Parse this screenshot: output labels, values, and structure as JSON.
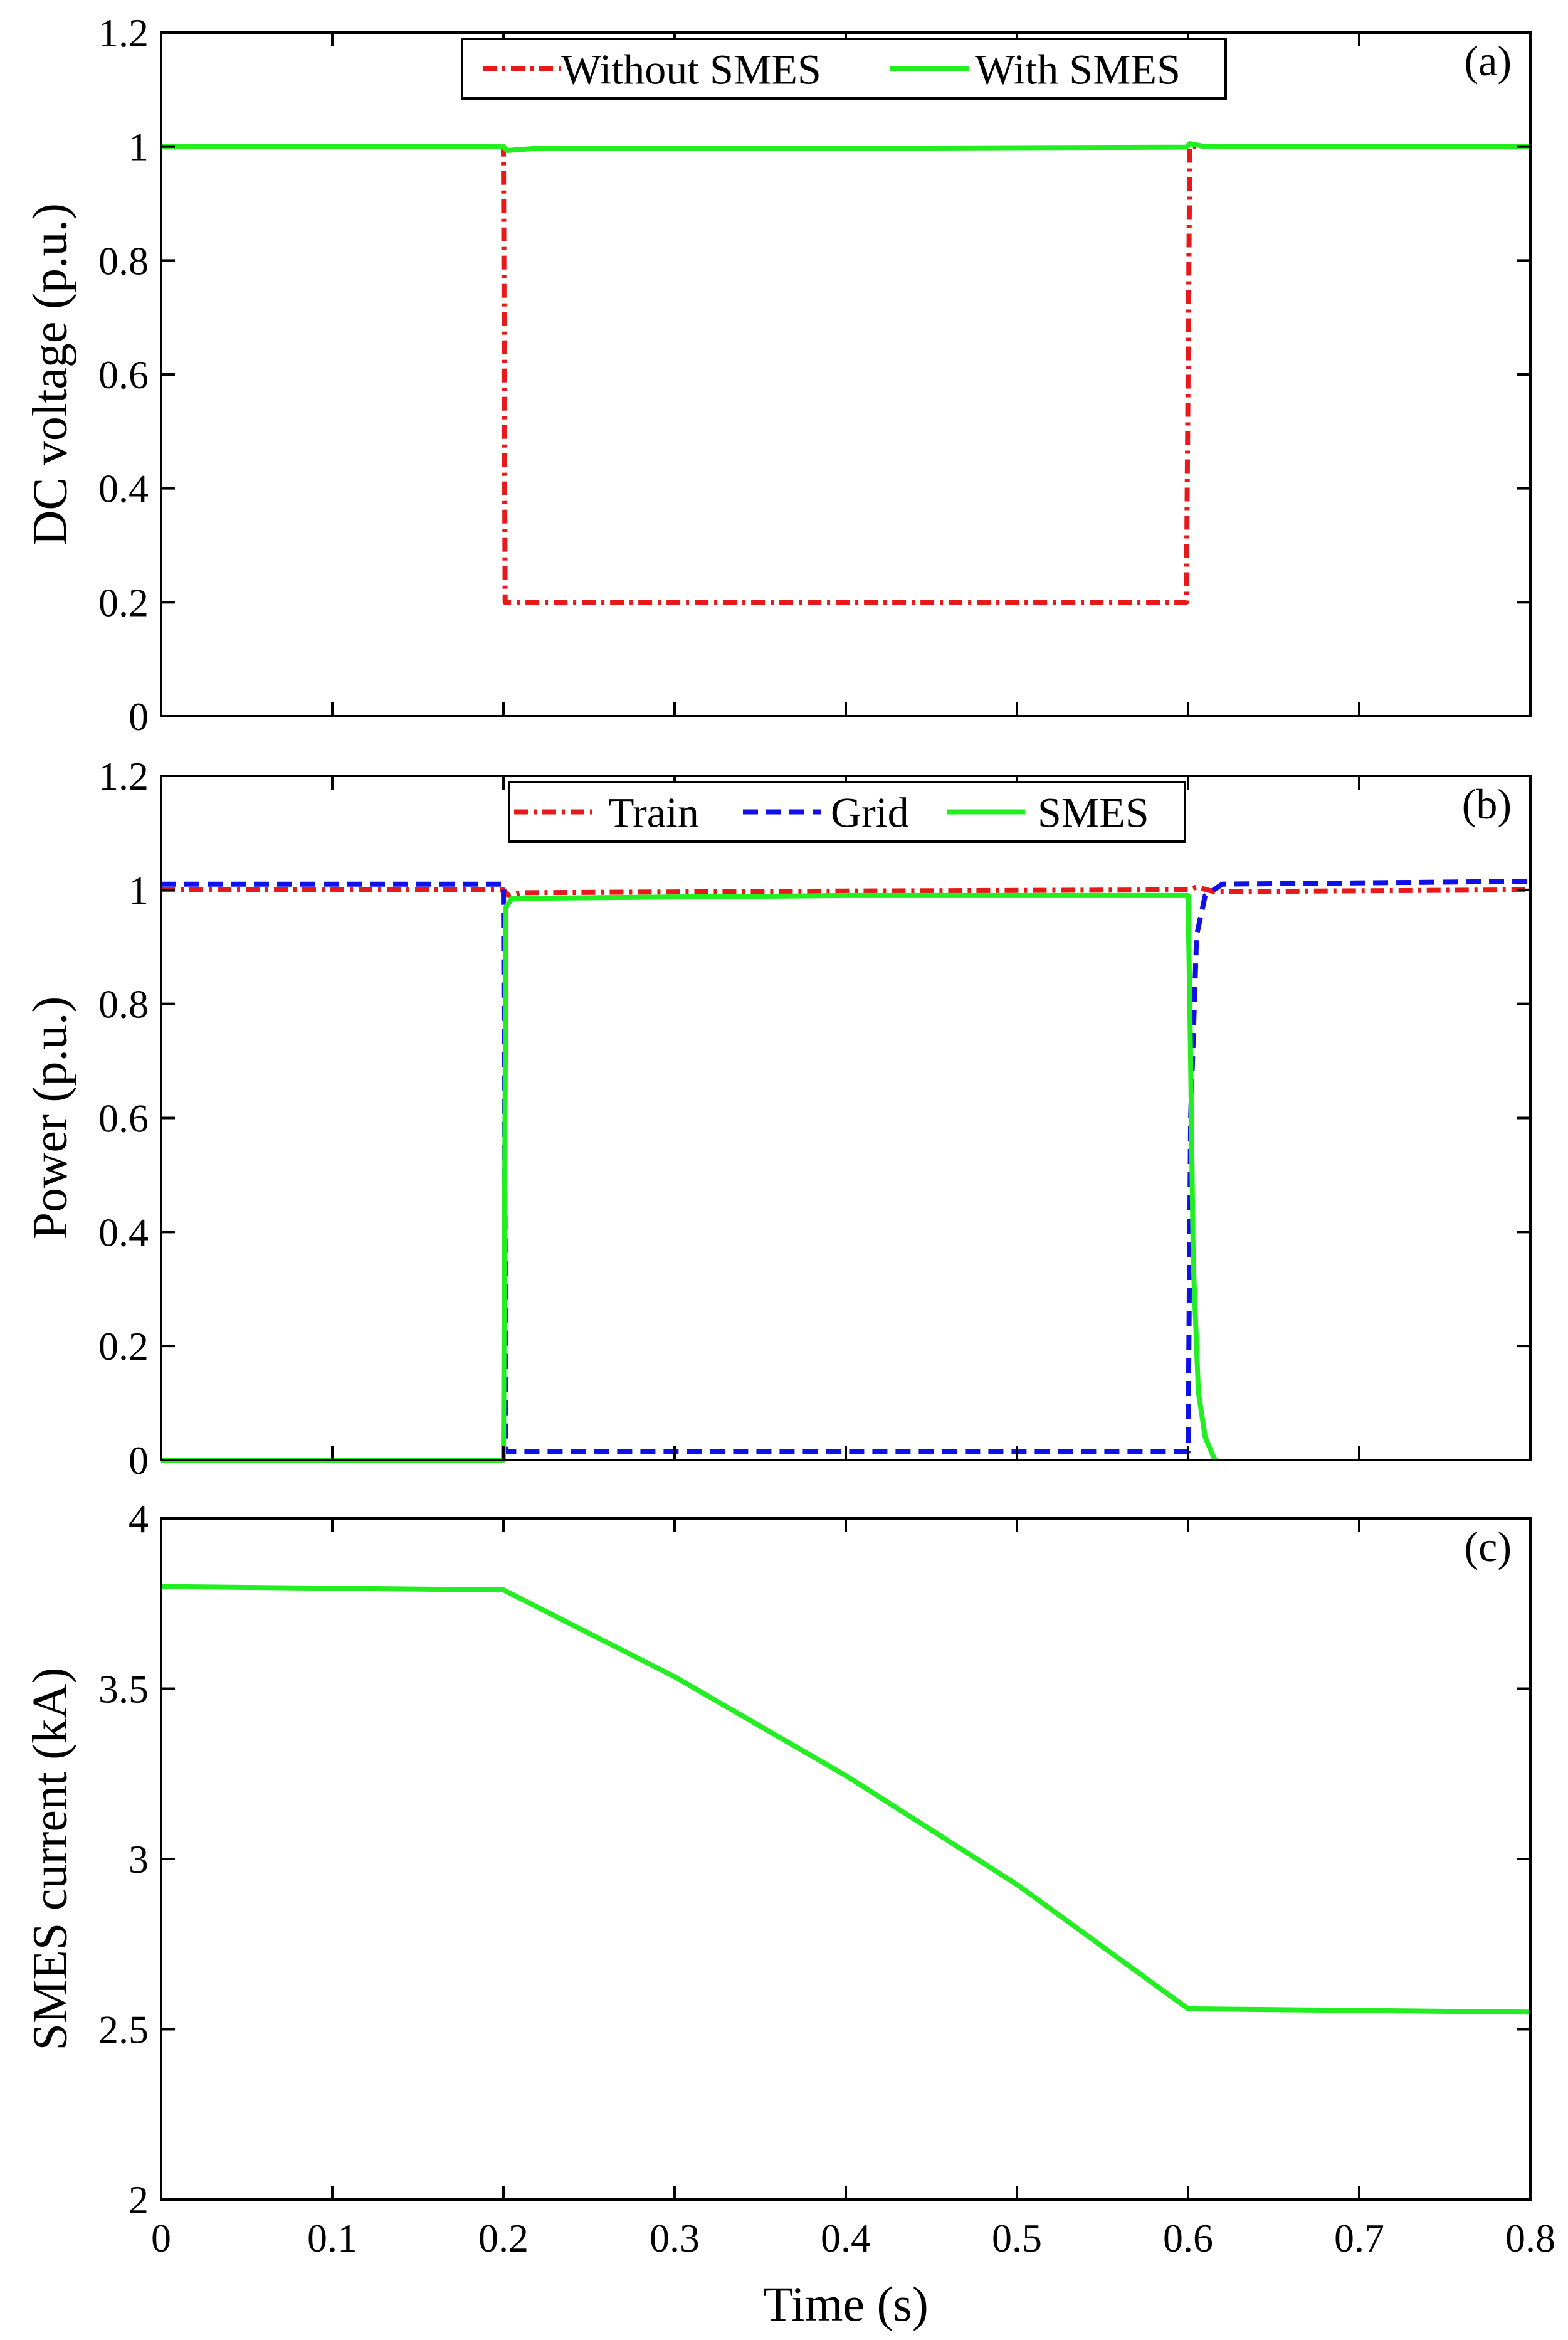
{
  "figure": {
    "xlabel": "Time (s)",
    "x_tick_labels": [
      "0",
      "0.1",
      "0.2",
      "0.3",
      "0.4",
      "0.5",
      "0.6",
      "0.7",
      "0.8"
    ]
  },
  "chart_data": [
    {
      "panel": "(a)",
      "type": "line",
      "ylabel": "DC voltage (p.u.)",
      "xlim": [
        0,
        0.8
      ],
      "ylim": [
        0,
        1.2
      ],
      "yticks": [
        0,
        0.2,
        0.4,
        0.6,
        0.8,
        1,
        1.2
      ],
      "ytick_labels": [
        "0",
        "0.2",
        "0.4",
        "0.6",
        "0.8",
        "1",
        "1.2"
      ],
      "legend_position": "top-center",
      "series": [
        {
          "name": "Without SMES",
          "color": "#e8191b",
          "dash": "dashdot",
          "points": [
            [
              0,
              1.0
            ],
            [
              0.2,
              1.0
            ],
            [
              0.201,
              0.2
            ],
            [
              0.599,
              0.2
            ],
            [
              0.601,
              1.0
            ],
            [
              0.8,
              1.0
            ]
          ]
        },
        {
          "name": "With SMES",
          "color": "#22ee22",
          "dash": "solid",
          "points": [
            [
              0,
              1.0
            ],
            [
              0.2,
              1.0
            ],
            [
              0.202,
              0.993
            ],
            [
              0.22,
              0.997
            ],
            [
              0.4,
              0.997
            ],
            [
              0.599,
              0.999
            ],
            [
              0.601,
              1.005
            ],
            [
              0.61,
              1.0
            ],
            [
              0.8,
              1.0
            ]
          ]
        }
      ]
    },
    {
      "panel": "(b)",
      "type": "line",
      "ylabel": "Power (p.u.)",
      "xlim": [
        0,
        0.8
      ],
      "ylim": [
        0,
        1.2
      ],
      "yticks": [
        0,
        0.2,
        0.4,
        0.6,
        0.8,
        1,
        1.2
      ],
      "ytick_labels": [
        "0",
        "0.2",
        "0.4",
        "0.6",
        "0.8",
        "1",
        "1.2"
      ],
      "legend_position": "top-center",
      "series": [
        {
          "name": "Train",
          "color": "#e8191b",
          "dash": "dashdot",
          "points": [
            [
              0,
              1.0
            ],
            [
              0.2,
              1.0
            ],
            [
              0.203,
              0.99
            ],
            [
              0.21,
              0.995
            ],
            [
              0.4,
              0.998
            ],
            [
              0.6,
              1.0
            ],
            [
              0.605,
              1.005
            ],
            [
              0.615,
              0.997
            ],
            [
              0.8,
              1.0
            ]
          ]
        },
        {
          "name": "Grid",
          "color": "#1010e8",
          "dash": "dashed",
          "points": [
            [
              0,
              1.01
            ],
            [
              0.2,
              1.01
            ],
            [
              0.2015,
              0.015
            ],
            [
              0.6,
              0.015
            ],
            [
              0.6015,
              0.6
            ],
            [
              0.605,
              0.92
            ],
            [
              0.61,
              0.99
            ],
            [
              0.62,
              1.01
            ],
            [
              0.8,
              1.015
            ]
          ]
        },
        {
          "name": "SMES",
          "color": "#22ee22",
          "dash": "solid",
          "points": [
            [
              0,
              0.0
            ],
            [
              0.2,
              0.0
            ],
            [
              0.2015,
              0.97
            ],
            [
              0.205,
              0.985
            ],
            [
              0.4,
              0.99
            ],
            [
              0.6,
              0.99
            ],
            [
              0.6015,
              0.7
            ],
            [
              0.603,
              0.35
            ],
            [
              0.606,
              0.12
            ],
            [
              0.61,
              0.04
            ],
            [
              0.615,
              0.005
            ],
            [
              0.616,
              0.0
            ]
          ]
        }
      ]
    },
    {
      "panel": "(c)",
      "type": "line",
      "ylabel": "SMES current (kA)",
      "xlim": [
        0,
        0.8
      ],
      "ylim": [
        2,
        4
      ],
      "yticks": [
        2,
        2.5,
        3,
        3.5,
        4
      ],
      "ytick_labels": [
        "2",
        "2.5",
        "3",
        "3.5",
        "4"
      ],
      "series": [
        {
          "name": "",
          "color": "#22ee22",
          "dash": "solid",
          "points": [
            [
              0,
              3.8
            ],
            [
              0.2,
              3.79
            ],
            [
              0.3,
              3.535
            ],
            [
              0.4,
              3.245
            ],
            [
              0.5,
              2.925
            ],
            [
              0.6,
              2.56
            ],
            [
              0.8,
              2.55
            ]
          ]
        }
      ]
    }
  ]
}
